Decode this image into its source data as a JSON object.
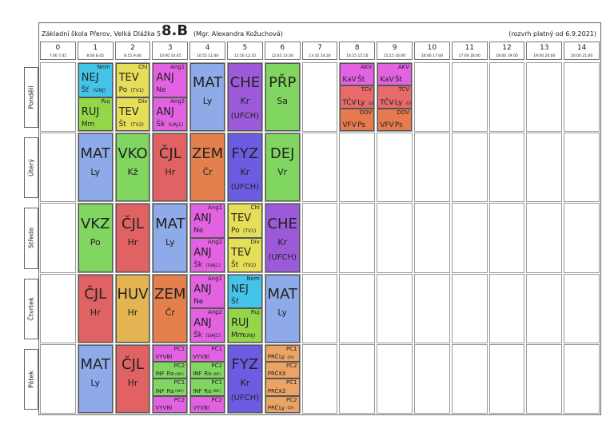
{
  "header": {
    "school": "Základní škola Přerov, Velká Dlážka 5",
    "class": "8.B",
    "teacher": "(Mgr. Alexandra Kožuchová)",
    "validity": "(rozvrh platný od 6.9.2021)"
  },
  "periods": [
    {
      "num": "0",
      "time": "7:00 7:45"
    },
    {
      "num": "1",
      "time": "8:00 8:45"
    },
    {
      "num": "2",
      "time": "8:55 9:40"
    },
    {
      "num": "3",
      "time": "10:00 10:45"
    },
    {
      "num": "4",
      "time": "10:55 11:40"
    },
    {
      "num": "5",
      "time": "11:50 12:35"
    },
    {
      "num": "6",
      "time": "12:45 13:30"
    },
    {
      "num": "7",
      "time": "13:35 14:20"
    },
    {
      "num": "8",
      "time": "14:25 15:10"
    },
    {
      "num": "9",
      "time": "15:15 16:00"
    },
    {
      "num": "10",
      "time": "16:00 17:00"
    },
    {
      "num": "11",
      "time": "17:00 18:00"
    },
    {
      "num": "12",
      "time": "18:00 19:00"
    },
    {
      "num": "13",
      "time": "19:00 20:00"
    },
    {
      "num": "14",
      "time": "20:00 21:00"
    }
  ],
  "days": [
    {
      "name": "Pondělí",
      "slots": [
        null,
        [
          {
            "group": "Nem",
            "subject": "NEJ",
            "teacher": "Šť",
            "room": "(UNJ)",
            "color": "#45c4ea"
          },
          {
            "group": "Ruj",
            "subject": "RUJ",
            "teacher": "Mm",
            "color": "#94d64a"
          }
        ],
        [
          {
            "group": "Chl",
            "subject": "TEV",
            "teacher": "Po",
            "room": "(TV1)",
            "color": "#e4de58"
          },
          {
            "group": "Dív",
            "subject": "TEV",
            "teacher": "Št",
            "room": "(TV2)",
            "color": "#e4de58"
          }
        ],
        [
          {
            "group": "Ang1",
            "subject": "ANJ",
            "teacher": "Ne",
            "color": "#e262e2"
          },
          {
            "group": "Ang2",
            "subject": "ANJ",
            "teacher": "Šk",
            "room": "(UAJ1)",
            "color": "#e262e2"
          }
        ],
        [
          {
            "subject": "MAT",
            "teacher": "Ly",
            "color": "#8eaae8"
          }
        ],
        [
          {
            "subject": "CHE",
            "teacher": "Kr",
            "room": "(UFCH)",
            "color": "#9c5ad8"
          }
        ],
        [
          {
            "subject": "PŘP",
            "teacher": "Sa",
            "color": "#80d660"
          }
        ],
        null,
        [
          {
            "group": "AKV",
            "subject": "KaV",
            "teacher": "Št",
            "color": "#e262e2"
          },
          {
            "group": "TČV",
            "subject": "TČV",
            "teacher": "Ly",
            "room": "(Dl)",
            "color": "#e86a6a"
          },
          {
            "group": "DOV",
            "subject": "VFV",
            "teacher": "Ps",
            "color": "#e87a50"
          }
        ],
        [
          {
            "group": "AKV",
            "subject": "KaV",
            "teacher": "Št",
            "color": "#e262e2"
          },
          {
            "group": "TČV",
            "subject": "TČV",
            "teacher": "Ly",
            "room": "(Dl)",
            "color": "#e86a6a"
          },
          {
            "group": "DOV",
            "subject": "VFV",
            "teacher": "Ps",
            "color": "#e87a50"
          }
        ]
      ]
    },
    {
      "name": "Úterý",
      "slots": [
        null,
        [
          {
            "subject": "MAT",
            "teacher": "Ly",
            "color": "#8eaae8"
          }
        ],
        [
          {
            "subject": "VKO",
            "teacher": "Kž",
            "color": "#80d660"
          }
        ],
        [
          {
            "subject": "ČJL",
            "teacher": "Hr",
            "color": "#e06262"
          }
        ],
        [
          {
            "subject": "ZEM",
            "teacher": "Čr",
            "color": "#e3804e"
          }
        ],
        [
          {
            "subject": "FYZ",
            "teacher": "Kr",
            "room": "(UFCH)",
            "color": "#6c5ce2"
          }
        ],
        [
          {
            "subject": "DEJ",
            "teacher": "Vr",
            "color": "#80d660"
          }
        ]
      ]
    },
    {
      "name": "Středa",
      "slots": [
        null,
        [
          {
            "subject": "VKZ",
            "teacher": "Po",
            "color": "#80d660"
          }
        ],
        [
          {
            "subject": "ČJL",
            "teacher": "Hr",
            "color": "#e06262"
          }
        ],
        [
          {
            "subject": "MAT",
            "teacher": "Ly",
            "color": "#8eaae8"
          }
        ],
        [
          {
            "group": "Ang1",
            "subject": "ANJ",
            "teacher": "Ne",
            "color": "#e262e2"
          },
          {
            "group": "Ang2",
            "subject": "ANJ",
            "teacher": "Šk",
            "room": "(UAJ1)",
            "color": "#e262e2"
          }
        ],
        [
          {
            "group": "Chl",
            "subject": "TEV",
            "teacher": "Po",
            "room": "(TV1)",
            "color": "#e4de58"
          },
          {
            "group": "Dív",
            "subject": "TEV",
            "teacher": "Št",
            "room": "(TV2)",
            "color": "#e4de58"
          }
        ],
        [
          {
            "subject": "CHE",
            "teacher": "Kr",
            "room": "(UFCH)",
            "color": "#9c5ad8"
          }
        ]
      ]
    },
    {
      "name": "Čtvrtek",
      "slots": [
        null,
        [
          {
            "subject": "ČJL",
            "teacher": "Hr",
            "color": "#e06262"
          }
        ],
        [
          {
            "subject": "HUV",
            "teacher": "Hr",
            "color": "#e2b452"
          }
        ],
        [
          {
            "subject": "ZEM",
            "teacher": "Čr",
            "color": "#e3804e"
          }
        ],
        [
          {
            "group": "Ang1",
            "subject": "ANJ",
            "teacher": "Ne",
            "color": "#e262e2"
          },
          {
            "group": "Ang2",
            "subject": "ANJ",
            "teacher": "Šk",
            "room": "(UAJ1)",
            "color": "#e262e2"
          }
        ],
        [
          {
            "group": "Nem",
            "subject": "NEJ",
            "teacher": "Šť",
            "color": "#45c4ea"
          },
          {
            "group": "Ruj",
            "subject": "RUJ",
            "teacher": "Mm",
            "room": "(UNJ)",
            "color": "#94d64a"
          }
        ],
        [
          {
            "subject": "MAT",
            "teacher": "Ly",
            "color": "#8eaae8"
          }
        ]
      ]
    },
    {
      "name": "Pátek",
      "slots": [
        null,
        [
          {
            "subject": "MAT",
            "teacher": "Ly",
            "color": "#8eaae8"
          }
        ],
        [
          {
            "subject": "ČJL",
            "teacher": "Hr",
            "color": "#e06262"
          }
        ],
        [
          {
            "group": "PČ1",
            "subject": "VYV",
            "teacher": "Bl",
            "color": "#e262e2"
          },
          {
            "group": "PČ2",
            "subject": "INF",
            "teacher": "Ra",
            "room": "(INF)",
            "color": "#80d660"
          },
          {
            "group": "PČ1",
            "subject": "INF",
            "teacher": "Ra",
            "room": "(INF)",
            "color": "#80d660"
          },
          {
            "group": "PČ2",
            "subject": "VYV",
            "teacher": "Bl",
            "color": "#e262e2"
          }
        ],
        [
          {
            "group": "PČ1",
            "subject": "VYV",
            "teacher": "Bl",
            "color": "#e262e2"
          },
          {
            "group": "PČ2",
            "subject": "INF",
            "teacher": "Ra",
            "room": "(INF)",
            "color": "#80d660"
          },
          {
            "group": "PČ1",
            "subject": "INF",
            "teacher": "Ra",
            "room": "(INF)",
            "color": "#80d660"
          },
          {
            "group": "PČ2",
            "subject": "VYV",
            "teacher": "Bl",
            "color": "#e262e2"
          }
        ],
        [
          {
            "subject": "FYZ",
            "teacher": "Kr",
            "room": "(UFCH)",
            "color": "#6c5ce2"
          }
        ],
        [
          {
            "group": "PČ1",
            "subject": "PRČ",
            "teacher": "Ly",
            "room": "(Dl)",
            "color": "#eca466"
          },
          {
            "group": "PČ2",
            "subject": "PRČ",
            "teacher": "Kž",
            "color": "#eca466"
          },
          {
            "group": "PČ1",
            "subject": "PRČ",
            "teacher": "Kž",
            "color": "#eca466"
          },
          {
            "group": "PČ2",
            "subject": "PRČ",
            "teacher": "Ly",
            "room": "(Dl)",
            "color": "#eca466"
          }
        ]
      ]
    }
  ]
}
